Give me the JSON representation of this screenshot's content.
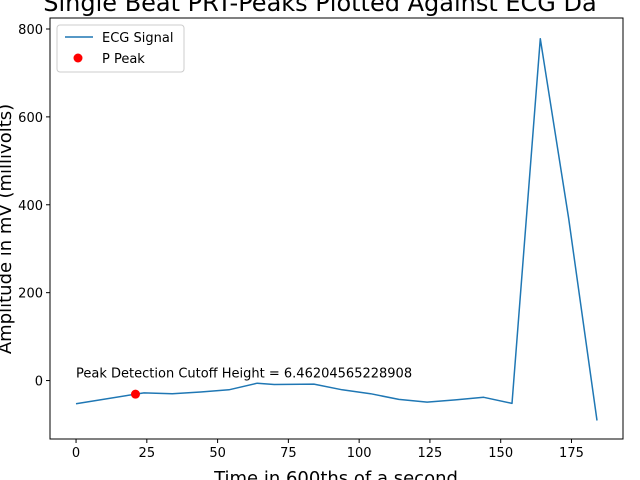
{
  "chart_data": {
    "type": "line",
    "title": "Single Beat PRT-Peaks Plotted Against ECG Da",
    "xlabel": "Time in 600ths of a second",
    "ylabel": "Amplitude in mV (millivolts)",
    "xlim": [
      -9.2,
      193.2
    ],
    "ylim": [
      -133,
      825
    ],
    "xticks": [
      0,
      25,
      50,
      75,
      100,
      125,
      150,
      175
    ],
    "xtick_labels": [
      "0",
      "25",
      "50",
      "75",
      "100",
      "125",
      "150",
      "175"
    ],
    "yticks": [
      0,
      200,
      400,
      600,
      800
    ],
    "ytick_labels": [
      "0",
      "200",
      "400",
      "600",
      "800"
    ],
    "grid": false,
    "legend_position": "top-left",
    "series": [
      {
        "name": "ECG Signal",
        "kind": "line",
        "color": "#1f77b4",
        "x": [
          0,
          20,
          24,
          34,
          44,
          54,
          64,
          70,
          84,
          94,
          104,
          114,
          124,
          134,
          144,
          154,
          164,
          174,
          184
        ],
        "y": [
          -53,
          -32,
          -28,
          -30,
          -26,
          -21,
          -6,
          -9,
          -8,
          -21,
          -30,
          -43,
          -49,
          -44,
          -38,
          -52,
          778,
          370,
          -91
        ]
      },
      {
        "name": "P Peak",
        "kind": "scatter",
        "color": "#ff0000",
        "x": [
          21
        ],
        "y": [
          -31
        ]
      }
    ],
    "annotations": [
      {
        "text": "Peak Detection Cutoff Height = 6.46204565228908",
        "x": 0,
        "y": 6.46
      }
    ]
  }
}
